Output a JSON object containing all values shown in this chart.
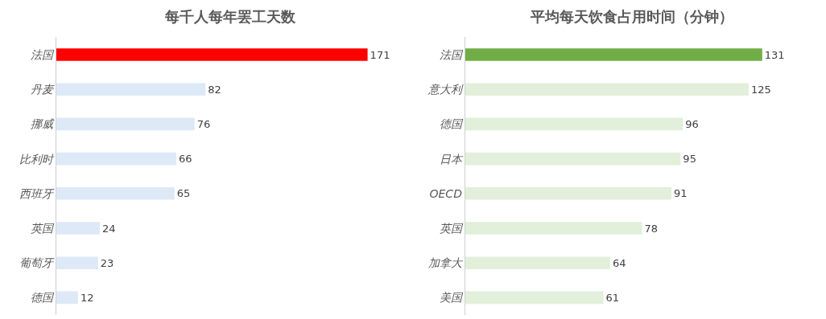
{
  "chart_data": [
    {
      "type": "bar",
      "orientation": "horizontal",
      "title": "每千人每年罢工天数",
      "categories": [
        "法国",
        "丹麦",
        "挪威",
        "比利时",
        "西班牙",
        "英国",
        "葡萄牙",
        "德国"
      ],
      "values": [
        171,
        82,
        76,
        66,
        65,
        24,
        23,
        12
      ],
      "colors": [
        "#ff0000",
        "#dde9f6",
        "#dde9f6",
        "#dde9f6",
        "#dde9f6",
        "#dde9f6",
        "#dde9f6",
        "#dde9f6"
      ],
      "data_labels": true
    },
    {
      "type": "bar",
      "orientation": "horizontal",
      "title": "平均每天饮食占用时间（分钟）",
      "categories": [
        "法国",
        "意大利",
        "德国",
        "日本",
        "OECD",
        "英国",
        "加拿大",
        "美国"
      ],
      "values": [
        131,
        125,
        96,
        95,
        91,
        78,
        64,
        61
      ],
      "colors": [
        "#70ad47",
        "#e2efda",
        "#e2efda",
        "#e2efda",
        "#e2efda",
        "#e2efda",
        "#e2efda",
        "#e2efda"
      ],
      "data_labels": true
    }
  ]
}
